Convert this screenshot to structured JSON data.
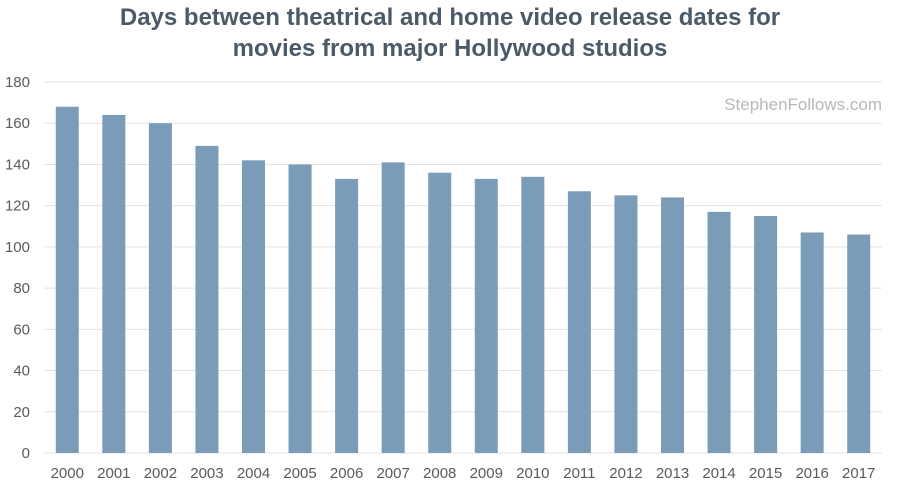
{
  "chart_data": {
    "type": "bar",
    "title_lines": [
      "Days between theatrical and home video release dates for",
      "movies from major Hollywood studios"
    ],
    "watermark": "StephenFollows.com",
    "categories": [
      "2000",
      "2001",
      "2002",
      "2003",
      "2004",
      "2005",
      "2006",
      "2007",
      "2008",
      "2009",
      "2010",
      "2011",
      "2012",
      "2013",
      "2014",
      "2015",
      "2016",
      "2017"
    ],
    "values": [
      168,
      164,
      160,
      149,
      142,
      140,
      133,
      141,
      136,
      133,
      134,
      127,
      125,
      124,
      117,
      115,
      107,
      106
    ],
    "ylim": [
      0,
      180
    ],
    "yticks": [
      0,
      20,
      40,
      60,
      80,
      100,
      120,
      140,
      160,
      180
    ],
    "grid": true,
    "bar_color": "#7a9cb8",
    "grid_color": "#e3e3e3",
    "title_color": "#4c5a68"
  }
}
